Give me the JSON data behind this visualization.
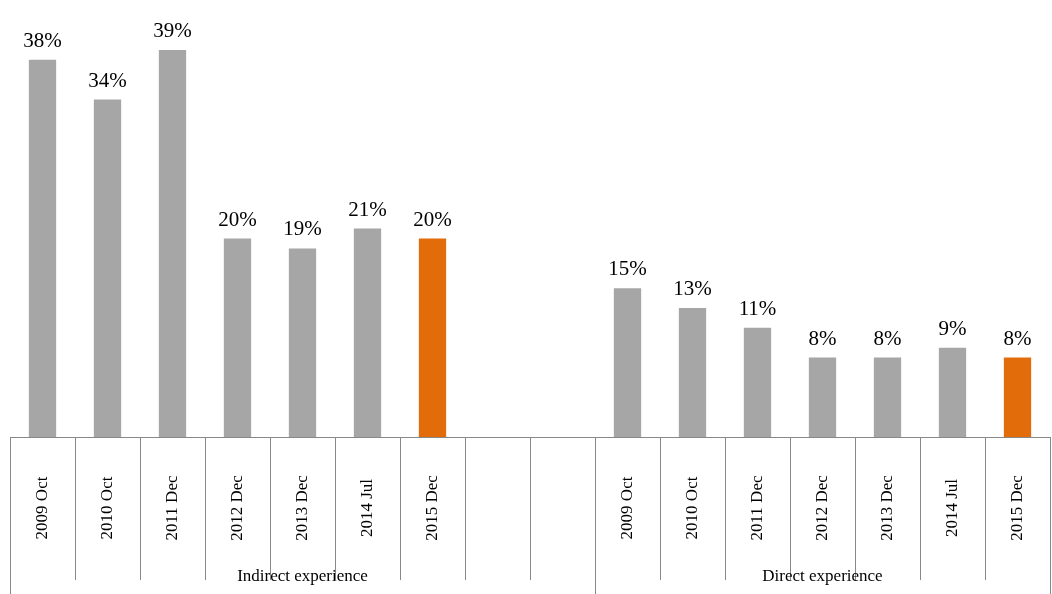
{
  "chart_data": {
    "type": "bar",
    "categories": [
      "2009 Oct",
      "2010 Oct",
      "2011 Dec",
      "2012 Dec",
      "2013 Dec",
      "2014 Jul",
      "2015 Dec",
      null,
      null,
      "2009 Oct",
      "2010 Oct",
      "2011 Dec",
      "2012 Dec",
      "2013 Dec",
      "2014 Jul",
      "2015 Dec"
    ],
    "values": [
      38,
      34,
      39,
      20,
      19,
      21,
      20,
      null,
      null,
      15,
      13,
      11,
      8,
      8,
      9,
      8
    ],
    "value_labels": [
      "38%",
      "34%",
      "39%",
      "20%",
      "19%",
      "21%",
      "20%",
      null,
      null,
      "15%",
      "13%",
      "11%",
      "8%",
      "8%",
      "9%",
      "8%"
    ],
    "colors": [
      "#a6a6a6",
      "#a6a6a6",
      "#a6a6a6",
      "#a6a6a6",
      "#a6a6a6",
      "#a6a6a6",
      "#e36c0a",
      "#a6a6a6",
      "#a6a6a6",
      "#a6a6a6",
      "#a6a6a6",
      "#a6a6a6",
      "#a6a6a6",
      "#a6a6a6",
      "#a6a6a6",
      "#e36c0a"
    ],
    "annotations": [
      "Indirect experience",
      "Direct experience"
    ],
    "grid": false,
    "legend": false
  }
}
